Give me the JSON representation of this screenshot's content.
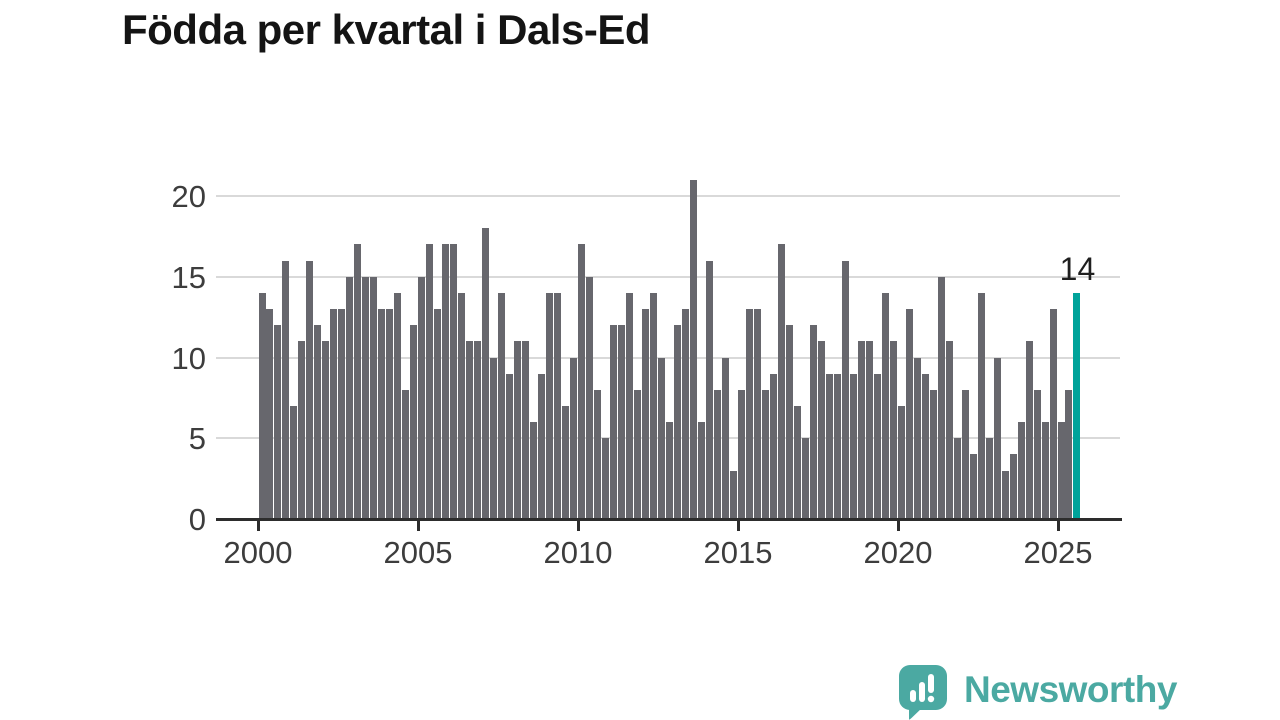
{
  "title": "Födda per kvartal i Dals-Ed",
  "annotation": {
    "text": "14"
  },
  "brand": {
    "name": "Newsworthy",
    "color": "#4ba9a2",
    "icon": "speech-bubble-bar-chart"
  },
  "chart_data": {
    "type": "bar",
    "title": "Födda per kvartal i Dals-Ed",
    "xlabel": "",
    "ylabel": "",
    "x_start": "2000-Q1",
    "x_end": "2025-Q3",
    "x_tick_labels": [
      "2000",
      "2005",
      "2010",
      "2015",
      "2020",
      "2025"
    ],
    "y_tick_labels": [
      "0",
      "5",
      "10",
      "15",
      "20"
    ],
    "ylim": [
      0,
      21.7
    ],
    "grid": true,
    "bar_color": "#67676d",
    "highlight_color": "#00a39a",
    "highlight_index": 102,
    "highlight_label": "14",
    "series": [
      {
        "name": "Födda per kvartal",
        "values_per_quarter": [
          14,
          13,
          12,
          16,
          7,
          11,
          16,
          12,
          11,
          13,
          13,
          15,
          17,
          15,
          15,
          13,
          13,
          14,
          8,
          12,
          15,
          17,
          13,
          17,
          17,
          14,
          11,
          11,
          18,
          10,
          14,
          9,
          11,
          11,
          6,
          9,
          14,
          14,
          7,
          10,
          17,
          15,
          8,
          5,
          12,
          12,
          14,
          8,
          13,
          14,
          10,
          6,
          12,
          13,
          21,
          6,
          16,
          8,
          10,
          3,
          8,
          13,
          13,
          8,
          9,
          17,
          12,
          7,
          5,
          12,
          11,
          9,
          9,
          16,
          9,
          11,
          11,
          9,
          14,
          11,
          7,
          13,
          10,
          9,
          8,
          15,
          11,
          5,
          8,
          4,
          14,
          5,
          10,
          3,
          4,
          6,
          11,
          8,
          6,
          13,
          6,
          8,
          14
        ]
      }
    ]
  }
}
